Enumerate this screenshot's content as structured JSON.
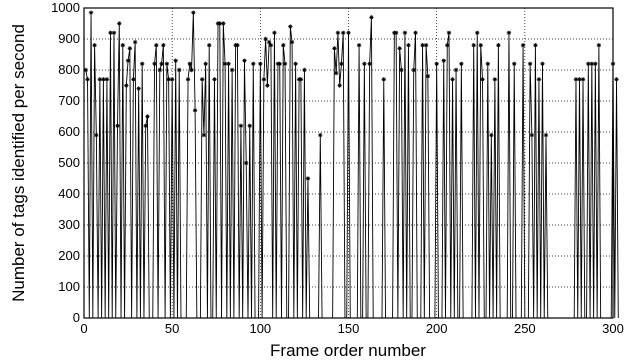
{
  "chart_data": {
    "type": "line",
    "title": "",
    "xlabel": "Frame order number",
    "ylabel": "Number of tags identified per second",
    "xlim": [
      0,
      300
    ],
    "ylim": [
      0,
      1000
    ],
    "xticks": [
      0,
      50,
      100,
      150,
      200,
      250,
      300
    ],
    "yticks": [
      0,
      100,
      200,
      300,
      400,
      500,
      600,
      700,
      800,
      900,
      1000
    ],
    "grid": true,
    "marker": "asterisk",
    "series": [
      {
        "values": [
          800,
          770,
          0,
          985,
          0,
          880,
          590,
          0,
          770,
          0,
          770,
          0,
          770,
          0,
          920,
          0,
          920,
          0,
          620,
          950,
          0,
          880,
          0,
          750,
          830,
          870,
          0,
          770,
          890,
          0,
          740,
          0,
          820,
          0,
          620,
          650,
          0,
          0,
          0,
          820,
          880,
          0,
          800,
          820,
          880,
          0,
          820,
          770,
          0,
          770,
          0,
          830,
          0,
          800,
          0,
          0,
          0,
          0,
          770,
          820,
          800,
          985,
          670,
          0,
          0,
          0,
          770,
          590,
          820,
          0,
          880,
          0,
          0,
          770,
          0,
          950,
          950,
          0,
          950,
          820,
          0,
          820,
          0,
          800,
          0,
          880,
          880,
          0,
          620,
          0,
          830,
          500,
          0,
          620,
          0,
          820,
          0,
          0,
          0,
          820,
          0,
          770,
          900,
          750,
          890,
          880,
          0,
          920,
          0,
          820,
          820,
          0,
          880,
          820,
          0,
          0,
          940,
          890,
          0,
          820,
          0,
          770,
          770,
          0,
          800,
          0,
          450,
          0,
          0,
          0,
          0,
          0,
          0,
          590,
          0,
          0,
          0,
          0,
          0,
          0,
          0,
          870,
          790,
          920,
          750,
          820,
          920,
          0,
          0,
          920,
          0,
          0,
          0,
          0,
          0,
          880,
          0,
          0,
          820,
          0,
          0,
          820,
          970,
          0,
          0,
          0,
          0,
          0,
          0,
          770,
          0,
          0,
          0,
          0,
          0,
          920,
          920,
          0,
          870,
          800,
          0,
          920,
          0,
          880,
          0,
          0,
          800,
          920,
          0,
          0,
          0,
          880,
          0,
          880,
          780,
          0,
          0,
          0,
          0,
          820,
          0,
          0,
          0,
          830,
          0,
          880,
          920,
          0,
          770,
          0,
          800,
          0,
          0,
          820,
          0,
          0,
          0,
          0,
          0,
          0,
          880,
          0,
          920,
          0,
          880,
          770,
          0,
          0,
          820,
          0,
          590,
          0,
          770,
          0,
          880,
          0,
          0,
          0,
          0,
          0,
          920,
          0,
          0,
          820,
          0,
          0,
          0,
          0,
          880,
          0,
          0,
          0,
          820,
          590,
          0,
          880,
          0,
          770,
          0,
          820,
          0,
          590,
          0,
          0,
          0,
          0,
          0,
          0,
          0,
          0,
          0,
          0,
          0,
          0,
          0,
          0,
          0,
          0,
          770,
          0,
          770,
          0,
          770,
          0,
          0,
          820,
          0,
          820,
          0,
          820,
          0,
          880,
          0,
          0,
          0,
          0,
          0,
          0,
          0,
          820,
          0,
          770,
          0
        ]
      }
    ]
  }
}
